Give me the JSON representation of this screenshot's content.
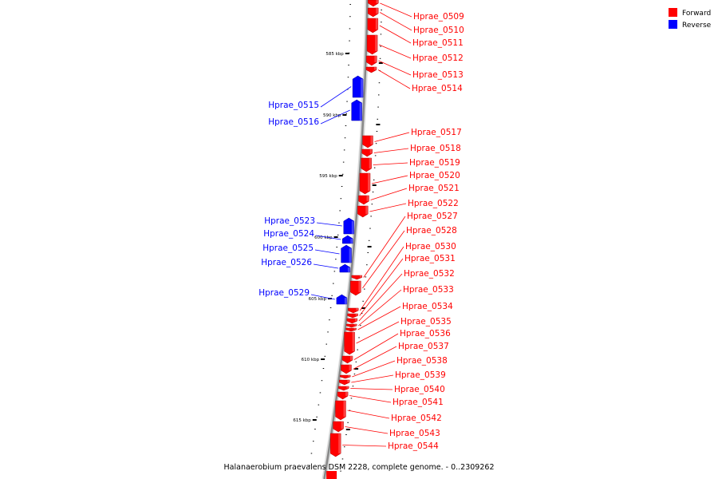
{
  "caption": "Halanaerobium praevalens DSM 2228, complete genome. - 0..2309262",
  "legend": [
    {
      "label": "Forward",
      "color": "#ff0000"
    },
    {
      "label": "Reverse",
      "color": "#0000ff"
    }
  ],
  "colors": {
    "forward": "#ff0000",
    "reverse": "#0000ff",
    "backbone": "#888888"
  },
  "ticks": [
    {
      "value_kbp": 585,
      "label": "585 kbp"
    },
    {
      "value_kbp": 590,
      "label": "590 kbp"
    },
    {
      "value_kbp": 595,
      "label": "595 kbp"
    },
    {
      "value_kbp": 600,
      "label": "600 kbp"
    },
    {
      "value_kbp": 605,
      "label": "605 kbp"
    },
    {
      "value_kbp": 610,
      "label": "610 kbp"
    },
    {
      "value_kbp": 615,
      "label": "615 kbp"
    }
  ],
  "genes": [
    {
      "name": "Hprae_0509",
      "strand": "forward"
    },
    {
      "name": "Hprae_0510",
      "strand": "forward"
    },
    {
      "name": "Hprae_0511",
      "strand": "forward"
    },
    {
      "name": "Hprae_0512",
      "strand": "forward"
    },
    {
      "name": "Hprae_0513",
      "strand": "forward"
    },
    {
      "name": "Hprae_0514",
      "strand": "forward"
    },
    {
      "name": "Hprae_0515",
      "strand": "reverse"
    },
    {
      "name": "Hprae_0516",
      "strand": "reverse"
    },
    {
      "name": "Hprae_0517",
      "strand": "forward"
    },
    {
      "name": "Hprae_0518",
      "strand": "forward"
    },
    {
      "name": "Hprae_0519",
      "strand": "forward"
    },
    {
      "name": "Hprae_0520",
      "strand": "forward"
    },
    {
      "name": "Hprae_0521",
      "strand": "forward"
    },
    {
      "name": "Hprae_0522",
      "strand": "forward"
    },
    {
      "name": "Hprae_0523",
      "strand": "reverse"
    },
    {
      "name": "Hprae_0524",
      "strand": "reverse"
    },
    {
      "name": "Hprae_0525",
      "strand": "reverse"
    },
    {
      "name": "Hprae_0526",
      "strand": "reverse"
    },
    {
      "name": "Hprae_0527",
      "strand": "forward"
    },
    {
      "name": "Hprae_0528",
      "strand": "forward"
    },
    {
      "name": "Hprae_0529",
      "strand": "reverse"
    },
    {
      "name": "Hprae_0530",
      "strand": "forward"
    },
    {
      "name": "Hprae_0531",
      "strand": "forward"
    },
    {
      "name": "Hprae_0532",
      "strand": "forward"
    },
    {
      "name": "Hprae_0533",
      "strand": "forward"
    },
    {
      "name": "Hprae_0534",
      "strand": "forward"
    },
    {
      "name": "Hprae_0535",
      "strand": "forward"
    },
    {
      "name": "Hprae_0536",
      "strand": "forward"
    },
    {
      "name": "Hprae_0537",
      "strand": "forward"
    },
    {
      "name": "Hprae_0538",
      "strand": "forward"
    },
    {
      "name": "Hprae_0539",
      "strand": "forward"
    },
    {
      "name": "Hprae_0540",
      "strand": "forward"
    },
    {
      "name": "Hprae_0541",
      "strand": "forward"
    },
    {
      "name": "Hprae_0542",
      "strand": "forward"
    },
    {
      "name": "Hprae_0543",
      "strand": "forward"
    },
    {
      "name": "Hprae_0544",
      "strand": "forward"
    }
  ]
}
